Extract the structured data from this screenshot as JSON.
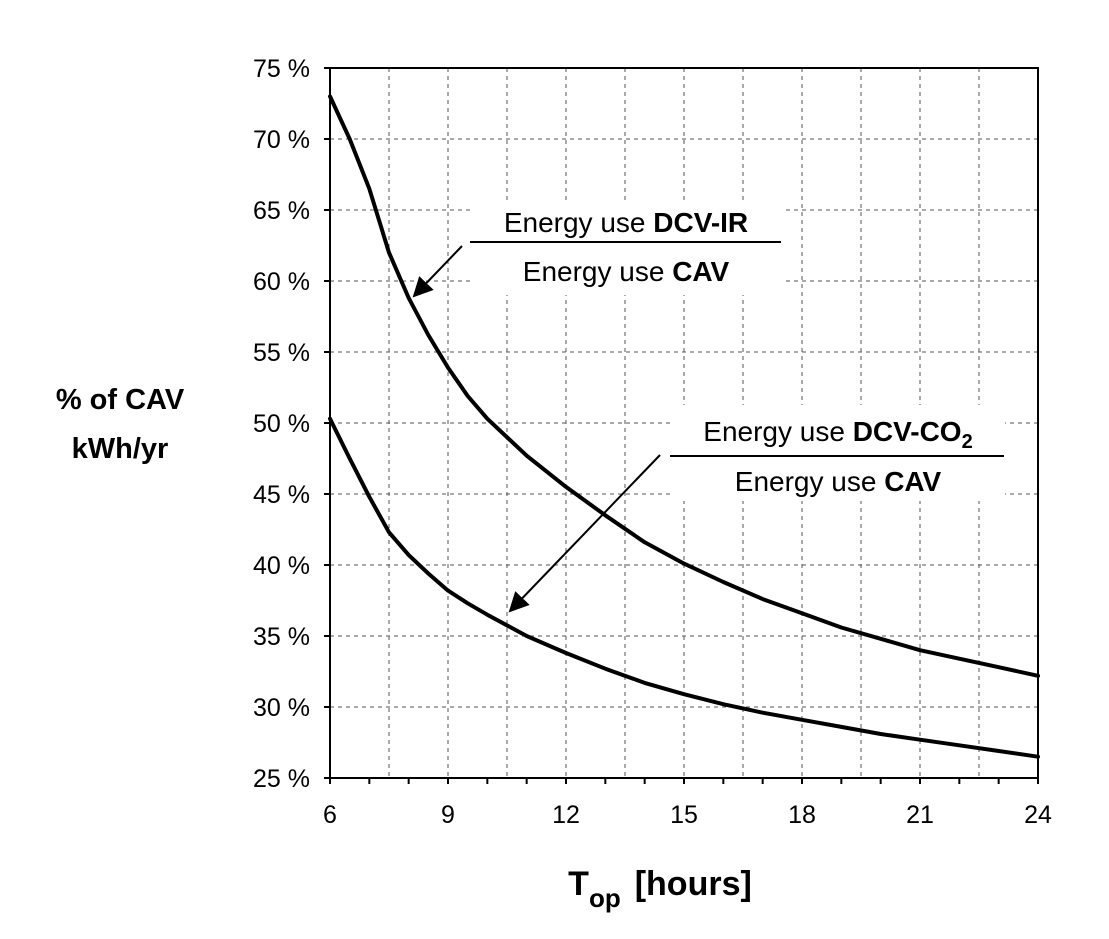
{
  "chart_data": {
    "type": "line",
    "ylabel_line1": "% of CAV",
    "ylabel_line2": "kWh/yr",
    "xlabel_main": "T",
    "xlabel_sub": "op",
    "xlabel_unit": "[hours]",
    "xlim": [
      6,
      24
    ],
    "ylim": [
      25,
      75
    ],
    "x_ticks": [
      6,
      9,
      12,
      15,
      18,
      21,
      24
    ],
    "y_ticks": [
      25,
      30,
      35,
      40,
      45,
      50,
      55,
      60,
      65,
      70,
      75
    ],
    "y_tick_labels": [
      "25 %",
      "30 %",
      "35 %",
      "40 %",
      "45 %",
      "50 %",
      "55 %",
      "60 %",
      "65 %",
      "70 %",
      "75 %"
    ],
    "grid": true,
    "series": [
      {
        "name": "DCV-IR",
        "x": [
          6,
          6.5,
          7,
          7.5,
          8,
          8.5,
          9,
          9.5,
          10,
          11,
          12,
          13,
          14,
          15,
          16,
          17,
          18,
          19,
          20,
          21,
          22,
          23,
          24
        ],
        "y": [
          73.0,
          70.0,
          66.5,
          62.0,
          58.8,
          56.2,
          53.9,
          51.9,
          50.3,
          47.7,
          45.5,
          43.5,
          41.6,
          40.1,
          38.8,
          37.6,
          36.6,
          35.6,
          34.8,
          34.0,
          33.4,
          32.8,
          32.2
        ]
      },
      {
        "name": "DCV-CO2",
        "x": [
          6,
          6.5,
          7,
          7.5,
          8,
          8.5,
          9,
          9.5,
          10,
          11,
          12,
          13,
          14,
          15,
          16,
          17,
          18,
          19,
          20,
          21,
          22,
          23,
          24
        ],
        "y": [
          50.3,
          47.5,
          44.8,
          42.3,
          40.7,
          39.4,
          38.2,
          37.3,
          36.5,
          35.0,
          33.8,
          32.7,
          31.7,
          30.9,
          30.2,
          29.6,
          29.1,
          28.6,
          28.1,
          27.7,
          27.3,
          26.9,
          26.5
        ]
      }
    ],
    "annotations": [
      {
        "numerator_prefix": "Energy use",
        "numerator_bold": "DCV-IR",
        "denominator_prefix": "Energy use",
        "denominator_bold": "CAV"
      },
      {
        "numerator_prefix": "Energy use",
        "numerator_bold": "DCV-CO",
        "numerator_subscript": "2",
        "denominator_prefix": "Energy use",
        "denominator_bold": "CAV"
      }
    ]
  }
}
